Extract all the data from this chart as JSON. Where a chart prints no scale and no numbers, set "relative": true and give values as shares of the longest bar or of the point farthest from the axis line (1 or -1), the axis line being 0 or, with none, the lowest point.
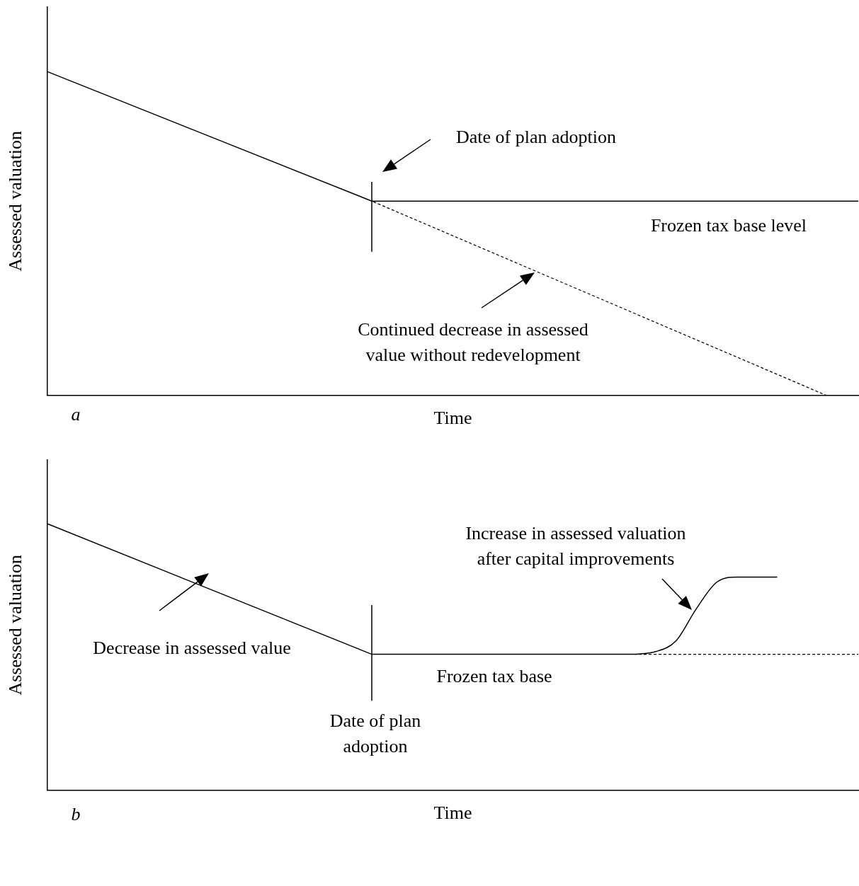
{
  "chart_data": [
    {
      "type": "line",
      "relative": true,
      "xlabel": "Time",
      "ylabel": "Assessed valuation",
      "grid": false,
      "legend": false,
      "categories": [
        null,
        null,
        null,
        null,
        null,
        null,
        null,
        null,
        null,
        null,
        null,
        null,
        null,
        null,
        null,
        null,
        null,
        null,
        null,
        null,
        null,
        null,
        null,
        null,
        null,
        null
      ],
      "series": [
        {
          "color": "#000000",
          "values": [
            1,
            null,
            null,
            null,
            null,
            null,
            null,
            null,
            null,
            null,
            0.6,
            null,
            null,
            null,
            null,
            null,
            null,
            null,
            null,
            null,
            null,
            null,
            null,
            null,
            null,
            null
          ]
        },
        {
          "color": "#000000",
          "values": [
            null,
            null,
            null,
            null,
            null,
            null,
            null,
            null,
            null,
            null,
            0.6,
            null,
            null,
            null,
            null,
            null,
            null,
            null,
            null,
            null,
            null,
            null,
            null,
            null,
            null,
            0.6
          ]
        },
        {
          "color": "#000000",
          "values": [
            null,
            null,
            null,
            null,
            null,
            null,
            null,
            null,
            null,
            null,
            0.6,
            null,
            null,
            null,
            null,
            null,
            null,
            null,
            null,
            null,
            null,
            null,
            null,
            null,
            0,
            null
          ],
          "line_style": "dashed"
        }
      ],
      "annotations": [
        "Date of plan adoption",
        "Frozen tax base level",
        "Continued decrease in assessed\nvalue without redevelopment",
        "a"
      ]
    },
    {
      "type": "line",
      "relative": true,
      "xlabel": "Time",
      "ylabel": "Assessed valuation",
      "grid": false,
      "legend": false,
      "categories": [
        null,
        null,
        null,
        null,
        null,
        null,
        null,
        null,
        null,
        null,
        null,
        null,
        null,
        null,
        null,
        null,
        null,
        null,
        null,
        null,
        null,
        null,
        null,
        null,
        null,
        null,
        null,
        null,
        null,
        null,
        null,
        null,
        null,
        null,
        null,
        null,
        null,
        null,
        null,
        null,
        null
      ],
      "series": [
        {
          "color": "#000000",
          "values": [
            1,
            null,
            null,
            null,
            null,
            null,
            null,
            null,
            null,
            null,
            null,
            null,
            null,
            null,
            null,
            null,
            0.51,
            null,
            null,
            null,
            null,
            null,
            null,
            null,
            null,
            null,
            null,
            null,
            null,
            null,
            null,
            null,
            null,
            null,
            null,
            null,
            null,
            null,
            null,
            null,
            null
          ]
        },
        {
          "color": "#000000",
          "values": [
            null,
            null,
            null,
            null,
            null,
            null,
            null,
            null,
            null,
            null,
            null,
            null,
            null,
            null,
            null,
            null,
            0.51,
            null,
            null,
            null,
            null,
            null,
            null,
            null,
            null,
            null,
            null,
            null,
            null,
            0.51,
            null,
            null,
            null,
            null,
            null,
            null,
            null,
            null,
            null,
            null,
            null
          ]
        },
        {
          "color": "#000000",
          "values": [
            null,
            null,
            null,
            null,
            null,
            null,
            null,
            null,
            null,
            null,
            null,
            null,
            null,
            null,
            null,
            null,
            null,
            null,
            null,
            null,
            null,
            null,
            null,
            null,
            null,
            null,
            null,
            null,
            null,
            0.51,
            0.52,
            0.56,
            0.68,
            0.78,
            0.8,
            0.8,
            0.8,
            null,
            null,
            null,
            null
          ]
        },
        {
          "color": "#000000",
          "values": [
            null,
            null,
            null,
            null,
            null,
            null,
            null,
            null,
            null,
            null,
            null,
            null,
            null,
            null,
            null,
            null,
            null,
            null,
            null,
            null,
            null,
            null,
            null,
            null,
            null,
            null,
            null,
            null,
            null,
            0.51,
            null,
            null,
            null,
            null,
            null,
            null,
            null,
            null,
            null,
            null,
            0.51
          ],
          "line_style": "dashed"
        }
      ],
      "annotations": [
        "Increase in assessed valuation\nafter capital improvements",
        "Decrease in assessed value",
        "Frozen tax base",
        "Date of plan\nadoption",
        "b"
      ]
    }
  ]
}
